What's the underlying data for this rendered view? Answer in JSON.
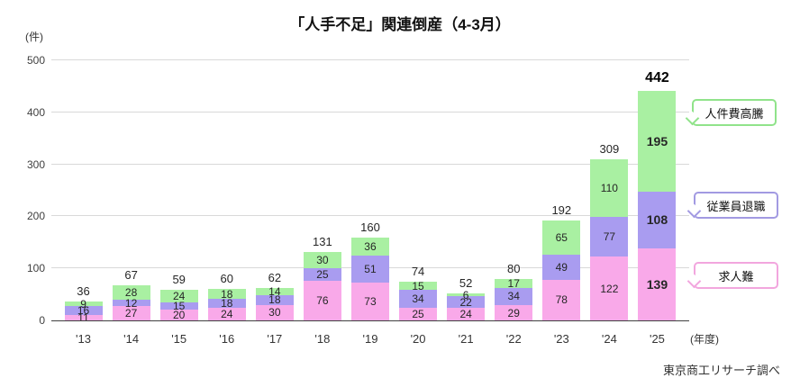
{
  "title": "「人手不足」関連倒産（4-3月）",
  "y_unit": "(件)",
  "x_unit": "(年度)",
  "source": "東京商工リサーチ調べ",
  "colors": {
    "pink": "#f9a9e9",
    "purple": "#a99cf0",
    "green": "#a9f0a2",
    "pink_border": "#f2a6de",
    "purple_border": "#a29ae2",
    "green_border": "#90e38a"
  },
  "legend": [
    {
      "label": "人件費高騰",
      "color_key": "green"
    },
    {
      "label": "従業員退職",
      "color_key": "purple"
    },
    {
      "label": "求人難",
      "color_key": "pink"
    }
  ],
  "chart_data": {
    "type": "bar",
    "stacked": true,
    "title": "「人手不足」関連倒産（4-3月）",
    "ylabel": "(件)",
    "xlabel": "(年度)",
    "ylim": [
      0,
      500
    ],
    "y_ticks": [
      0,
      100,
      200,
      300,
      400,
      500
    ],
    "grid": true,
    "categories": [
      "'13",
      "'14",
      "'15",
      "'16",
      "'17",
      "'18",
      "'19",
      "'20",
      "'21",
      "'22",
      "'23",
      "'24",
      "'25"
    ],
    "series": [
      {
        "name": "求人難",
        "color_key": "pink",
        "values": [
          11,
          27,
          20,
          24,
          30,
          76,
          73,
          25,
          24,
          29,
          78,
          122,
          139
        ]
      },
      {
        "name": "従業員退職",
        "color_key": "purple",
        "values": [
          16,
          12,
          15,
          18,
          18,
          25,
          51,
          34,
          22,
          34,
          49,
          77,
          108
        ]
      },
      {
        "name": "人件費高騰",
        "color_key": "green",
        "values": [
          9,
          28,
          24,
          18,
          14,
          30,
          36,
          15,
          6,
          17,
          65,
          110,
          195
        ]
      }
    ],
    "totals": [
      36,
      67,
      59,
      60,
      62,
      131,
      160,
      74,
      52,
      80,
      192,
      309,
      442
    ],
    "highlight_last_category": true,
    "legend_position": "right-callouts"
  }
}
